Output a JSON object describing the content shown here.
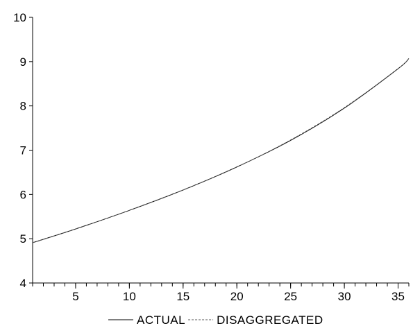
{
  "chart_data": {
    "type": "line",
    "title": "",
    "xlabel": "",
    "ylabel": "",
    "xlim": [
      1,
      36
    ],
    "ylim": [
      4,
      10
    ],
    "x_ticks": [
      5,
      10,
      15,
      20,
      25,
      30,
      35
    ],
    "y_ticks": [
      4,
      5,
      6,
      7,
      8,
      9,
      10
    ],
    "grid": false,
    "legend_position": "bottom",
    "x": [
      1,
      5,
      10,
      15,
      20,
      25,
      30,
      35,
      36
    ],
    "series": [
      {
        "name": "ACTUAL",
        "style": "solid",
        "color": "#000000",
        "values": [
          4.91,
          5.22,
          5.64,
          6.1,
          6.62,
          7.22,
          7.95,
          8.84,
          9.07
        ]
      },
      {
        "name": "DISAGGREGATED",
        "style": "dashed",
        "color": "#555555",
        "values": [
          4.91,
          5.22,
          5.64,
          6.1,
          6.62,
          7.23,
          7.96,
          8.84,
          9.07
        ]
      }
    ]
  }
}
